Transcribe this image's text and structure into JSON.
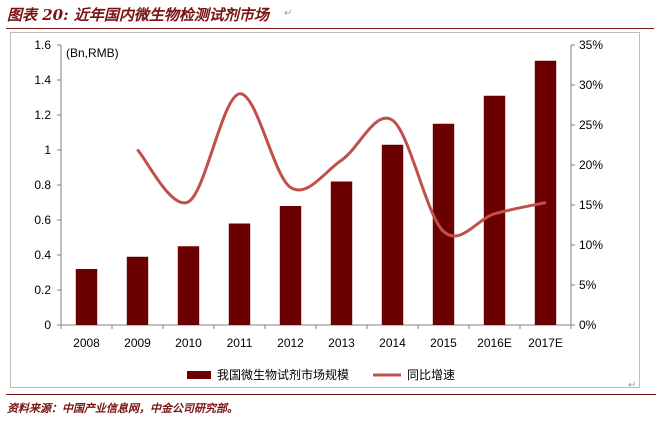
{
  "header": {
    "title": "图表 20: 近年国内微生物检测试剂市场"
  },
  "footer": {
    "source": "资料来源：中国产业信息网，中金公司研究部。"
  },
  "colors": {
    "bar": "#6b0000",
    "line": "#c0504d",
    "accent": "#7a1414"
  },
  "chart_data": {
    "type": "bar",
    "categories": [
      "2008",
      "2009",
      "2010",
      "2011",
      "2012",
      "2013",
      "2014",
      "2015",
      "2016E",
      "2017E"
    ],
    "series": [
      {
        "name": "我国微生物试剂市场规模",
        "type": "bar",
        "axis": "left",
        "values": [
          0.32,
          0.39,
          0.45,
          0.58,
          0.68,
          0.82,
          1.03,
          1.15,
          1.31,
          1.51
        ]
      },
      {
        "name": "同比增速",
        "type": "line",
        "axis": "right",
        "values": [
          null,
          21.9,
          15.4,
          28.9,
          17.2,
          20.6,
          25.6,
          11.7,
          13.9,
          15.3
        ]
      }
    ],
    "ylabel": "(Bn,RMB)",
    "ylim": [
      0,
      1.6
    ],
    "yticks": [
      "0",
      "0.2",
      "0.4",
      "0.6",
      "0.8",
      "1",
      "1.2",
      "1.4",
      "1.6"
    ],
    "y2lim": [
      0,
      35
    ],
    "y2ticks": [
      "0%",
      "5%",
      "10%",
      "15%",
      "20%",
      "25%",
      "30%",
      "35%"
    ],
    "legend_position": "bottom",
    "grid": false
  }
}
